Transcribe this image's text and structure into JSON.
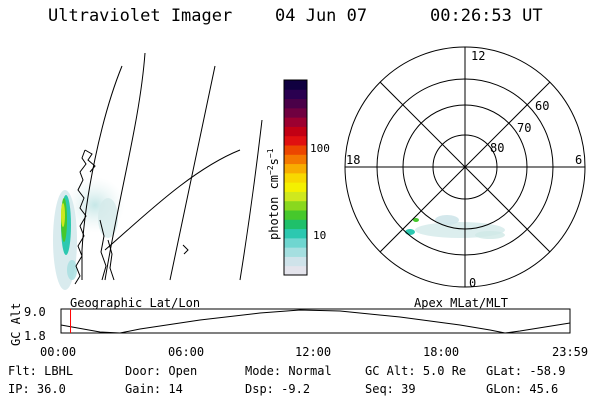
{
  "header": {
    "instrument": "Ultraviolet Imager",
    "date": "04 Jun 07",
    "time": "00:26:53 UT"
  },
  "colorbar": {
    "label": "photon cm⁻²s⁻¹",
    "label_main": "photon cm",
    "sup1": "−2",
    "label_s": "s",
    "sup2": "−1",
    "ticks": [
      "100",
      "10"
    ],
    "colors": [
      "#e4e4ec",
      "#cfe3ea",
      "#a5dfe0",
      "#6fd6d0",
      "#2cc8b0",
      "#1fc06a",
      "#46c82c",
      "#8ad81e",
      "#cfe81e",
      "#f4f000",
      "#f8d800",
      "#f8ac00",
      "#f47800",
      "#ec4600",
      "#e01010",
      "#c20014",
      "#9c0030",
      "#700040",
      "#4a0048",
      "#2a0050",
      "#100040"
    ]
  },
  "polar": {
    "mlt_labels": {
      "top": "12",
      "bottom": "0",
      "left": "18",
      "right": "6"
    },
    "lat_labels": [
      "60",
      "70",
      "80"
    ]
  },
  "map_labels": {
    "left": "Geographic Lat/Lon",
    "right": "Apex MLat/MLT"
  },
  "timeline": {
    "ylabel": "GC Alt",
    "yticks": [
      "9.0",
      "1.8"
    ],
    "xticks": [
      "00:00",
      "06:00",
      "12:00",
      "18:00",
      "23:59"
    ],
    "current_time_fraction": 0.0187,
    "marker_color": "#ff0000"
  },
  "status": {
    "row1": [
      {
        "label": "Flt:",
        "value": "LBHL"
      },
      {
        "label": "Door:",
        "value": "Open"
      },
      {
        "label": "Mode:",
        "value": "Normal"
      },
      {
        "label": "GC Alt:",
        "value": "5.0 Re"
      },
      {
        "label": "GLat:",
        "value": "-58.9"
      }
    ],
    "row2": [
      {
        "label": "IP:",
        "value": "36.0"
      },
      {
        "label": "Gain:",
        "value": "14"
      },
      {
        "label": "Dsp:",
        "value": "-9.2"
      },
      {
        "label": "Seq:",
        "value": "39"
      },
      {
        "label": "GLon:",
        "value": "45.6"
      }
    ]
  }
}
